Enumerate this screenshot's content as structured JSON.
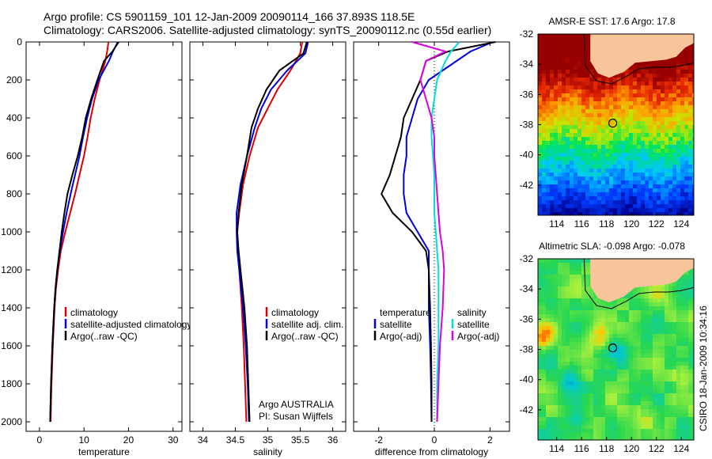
{
  "title": {
    "line1": "Argo profile: CS 5901159_101 12-Jan-2009 20090114_166 37.893S 118.5E",
    "line2": "Climatology: CARS2006. Satellite-adjusted climatology: synTS_20090112.nc (0.55d earlier)"
  },
  "side_label": "CSIRO 18-Jan-2009 10:34:16",
  "colors": {
    "climatology": "#dd0000",
    "satellite": "#0000dd",
    "argo": "#000000",
    "satellite_diff": "#00dddd",
    "argo_adj": "#dd00dd",
    "land": "#f8c49a"
  },
  "chart_data": [
    {
      "type": "line",
      "xlabel": "temperature",
      "ylabel": "",
      "xlim": [
        -3,
        32
      ],
      "ylim": [
        2050,
        0
      ],
      "xticks": [
        0,
        10,
        20,
        30
      ],
      "yticks": [
        0,
        200,
        400,
        600,
        800,
        1000,
        1200,
        1400,
        1600,
        1800,
        2000
      ],
      "legend": [
        "climatology",
        "satellite-adjusted climatology",
        "Argo(..raw -QC)"
      ],
      "legend_position": "lower-center",
      "series": [
        {
          "name": "climatology",
          "color": "red",
          "depth": [
            0,
            50,
            100,
            200,
            300,
            400,
            500,
            600,
            700,
            800,
            900,
            1000,
            1100,
            1200,
            1300,
            1400,
            1600,
            1800,
            2000
          ],
          "value": [
            15.5,
            15.2,
            14.8,
            13.5,
            12.4,
            11.5,
            10.8,
            10.0,
            9.0,
            8.0,
            6.9,
            5.8,
            4.8,
            4.2,
            3.7,
            3.4,
            3.0,
            2.7,
            2.5
          ]
        },
        {
          "name": "satellite-adjusted climatology",
          "color": "blue",
          "depth": [
            0,
            50,
            100,
            200,
            300,
            400,
            500,
            600,
            700,
            800,
            900,
            1000,
            1100,
            1200,
            1300,
            1400,
            1600,
            1800,
            2000
          ],
          "value": [
            17.6,
            16.5,
            15.6,
            13.3,
            11.8,
            10.7,
            9.8,
            9.0,
            8.0,
            7.0,
            6.1,
            5.3,
            4.6,
            4.0,
            3.6,
            3.3,
            2.9,
            2.6,
            2.4
          ]
        },
        {
          "name": "Argo(..raw -QC)",
          "color": "black",
          "depth": [
            0,
            50,
            100,
            200,
            300,
            400,
            500,
            600,
            700,
            800,
            900,
            1000,
            1100,
            1200,
            1300,
            1400,
            1600,
            1800,
            2000
          ],
          "value": [
            17.8,
            16.4,
            14.5,
            13.0,
            11.6,
            10.4,
            9.6,
            8.6,
            7.4,
            6.3,
            5.6,
            5.0,
            4.5,
            4.0,
            3.6,
            3.3,
            2.9,
            2.6,
            2.4
          ]
        }
      ]
    },
    {
      "type": "line",
      "xlabel": "salinity",
      "ylabel": "",
      "xlim": [
        33.8,
        36.2
      ],
      "ylim": [
        2050,
        0
      ],
      "xticks": [
        34,
        34.5,
        35,
        35.5,
        36
      ],
      "legend": [
        "climatology",
        "satellite adj. clim.",
        "Argo(..raw -QC)"
      ],
      "legend_position": "lower-center",
      "annotation": [
        "Argo AUSTRALIA",
        "PI: Susan Wijffels"
      ],
      "series": [
        {
          "name": "climatology",
          "color": "red",
          "depth": [
            0,
            60,
            150,
            250,
            350,
            450,
            600,
            750,
            900,
            1000,
            1100,
            1200,
            1400,
            1600,
            1800,
            2000
          ],
          "value": [
            35.53,
            35.5,
            35.35,
            35.15,
            35.0,
            34.85,
            34.72,
            34.62,
            34.56,
            34.53,
            34.54,
            34.56,
            34.6,
            34.63,
            34.65,
            34.67
          ]
        },
        {
          "name": "satellite adj. clim.",
          "color": "blue",
          "depth": [
            0,
            60,
            150,
            250,
            350,
            450,
            600,
            750,
            900,
            1000,
            1100,
            1200,
            1400,
            1600,
            1800,
            2000
          ],
          "value": [
            35.62,
            35.58,
            35.3,
            35.05,
            34.9,
            34.8,
            34.68,
            34.58,
            34.52,
            34.52,
            34.53,
            34.56,
            34.62,
            34.66,
            34.69,
            34.71
          ]
        },
        {
          "name": "Argo(..raw -QC)",
          "color": "black",
          "depth": [
            0,
            60,
            150,
            250,
            350,
            450,
            600,
            750,
            900,
            1000,
            1100,
            1200,
            1400,
            1600,
            1800,
            2000
          ],
          "value": [
            35.6,
            35.55,
            35.18,
            34.98,
            34.85,
            34.75,
            34.68,
            34.6,
            34.55,
            34.53,
            34.55,
            34.58,
            34.64,
            34.68,
            34.7,
            34.72
          ]
        }
      ]
    },
    {
      "type": "line",
      "xlabel": "difference from climatology",
      "ylabel": "",
      "xlim": [
        -2.9,
        2.7
      ],
      "ylim": [
        2050,
        0
      ],
      "xticks": [
        -2,
        0,
        2
      ],
      "legend": [
        "temperature",
        "satellite",
        "Argo(-adj)",
        "salinity",
        "satellite",
        "Argo(-adj)"
      ],
      "legend_position": "lower-center",
      "series": [
        {
          "name": "satellite (temperature)",
          "color": "blue",
          "depth": [
            0,
            50,
            100,
            200,
            300,
            400,
            500,
            600,
            700,
            800,
            900,
            1000,
            1100,
            1200,
            1400,
            1600,
            1800,
            2000
          ],
          "value": [
            2.1,
            1.3,
            0.8,
            -0.2,
            -0.6,
            -0.8,
            -1.0,
            -1.0,
            -1.1,
            -1.1,
            -1.0,
            -0.6,
            -0.2,
            -0.2,
            -0.2,
            -0.15,
            -0.12,
            -0.1
          ]
        },
        {
          "name": "Argo(-adj) (temperature)",
          "color": "black",
          "depth": [
            0,
            50,
            100,
            200,
            300,
            400,
            500,
            600,
            700,
            800,
            900,
            1000,
            1100,
            1200,
            1400,
            1600,
            1800,
            2000
          ],
          "value": [
            2.2,
            0.5,
            -0.3,
            -0.5,
            -0.8,
            -1.1,
            -1.2,
            -1.4,
            -1.6,
            -1.9,
            -1.5,
            -0.8,
            -0.3,
            -0.2,
            -0.15,
            -0.12,
            -0.1,
            -0.1
          ]
        },
        {
          "name": "satellite (salinity)",
          "color": "cyan",
          "depth": [
            0,
            50,
            100,
            200,
            300,
            400,
            500,
            600,
            700,
            800,
            900,
            1000,
            1100,
            1200,
            1400,
            1600,
            1800,
            2000
          ],
          "value": [
            0.9,
            0.6,
            0.4,
            0.1,
            0.0,
            -0.1,
            -0.1,
            -0.05,
            0.0,
            0.0,
            0.0,
            0.05,
            0.1,
            0.15,
            0.15,
            0.15,
            0.1,
            0.1
          ]
        },
        {
          "name": "Argo(-adj) (salinity)",
          "color": "magenta",
          "depth": [
            0,
            50,
            100,
            200,
            300,
            400,
            500,
            600,
            700,
            800,
            900,
            1000,
            1100,
            1200,
            1400,
            1600,
            1800,
            2000
          ],
          "value": [
            -0.8,
            0.4,
            -0.3,
            -0.5,
            -0.3,
            -0.1,
            0.0,
            0.0,
            0.05,
            0.1,
            0.15,
            0.2,
            0.3,
            0.35,
            0.3,
            0.2,
            0.15,
            0.1
          ]
        }
      ]
    },
    {
      "type": "heatmap",
      "title": "AMSR-E SST: 17.6 Argo: 17.8",
      "xlim": [
        112.5,
        125
      ],
      "ylim": [
        -44,
        -32
      ],
      "xticks": [
        114,
        116,
        118,
        120,
        122,
        124
      ],
      "yticks": [
        -32,
        -34,
        -36,
        -38,
        -40,
        -42
      ],
      "marker": {
        "lon": 118.5,
        "lat": -37.9
      }
    },
    {
      "type": "heatmap",
      "title": "Altimetric SLA: -0.098 Argo: -0.078",
      "xlim": [
        112.5,
        125
      ],
      "ylim": [
        -44,
        -32
      ],
      "xticks": [
        114,
        116,
        118,
        120,
        122,
        124
      ],
      "yticks": [
        -32,
        -34,
        -36,
        -38,
        -40,
        -42
      ],
      "marker": {
        "lon": 118.5,
        "lat": -37.9
      }
    }
  ]
}
